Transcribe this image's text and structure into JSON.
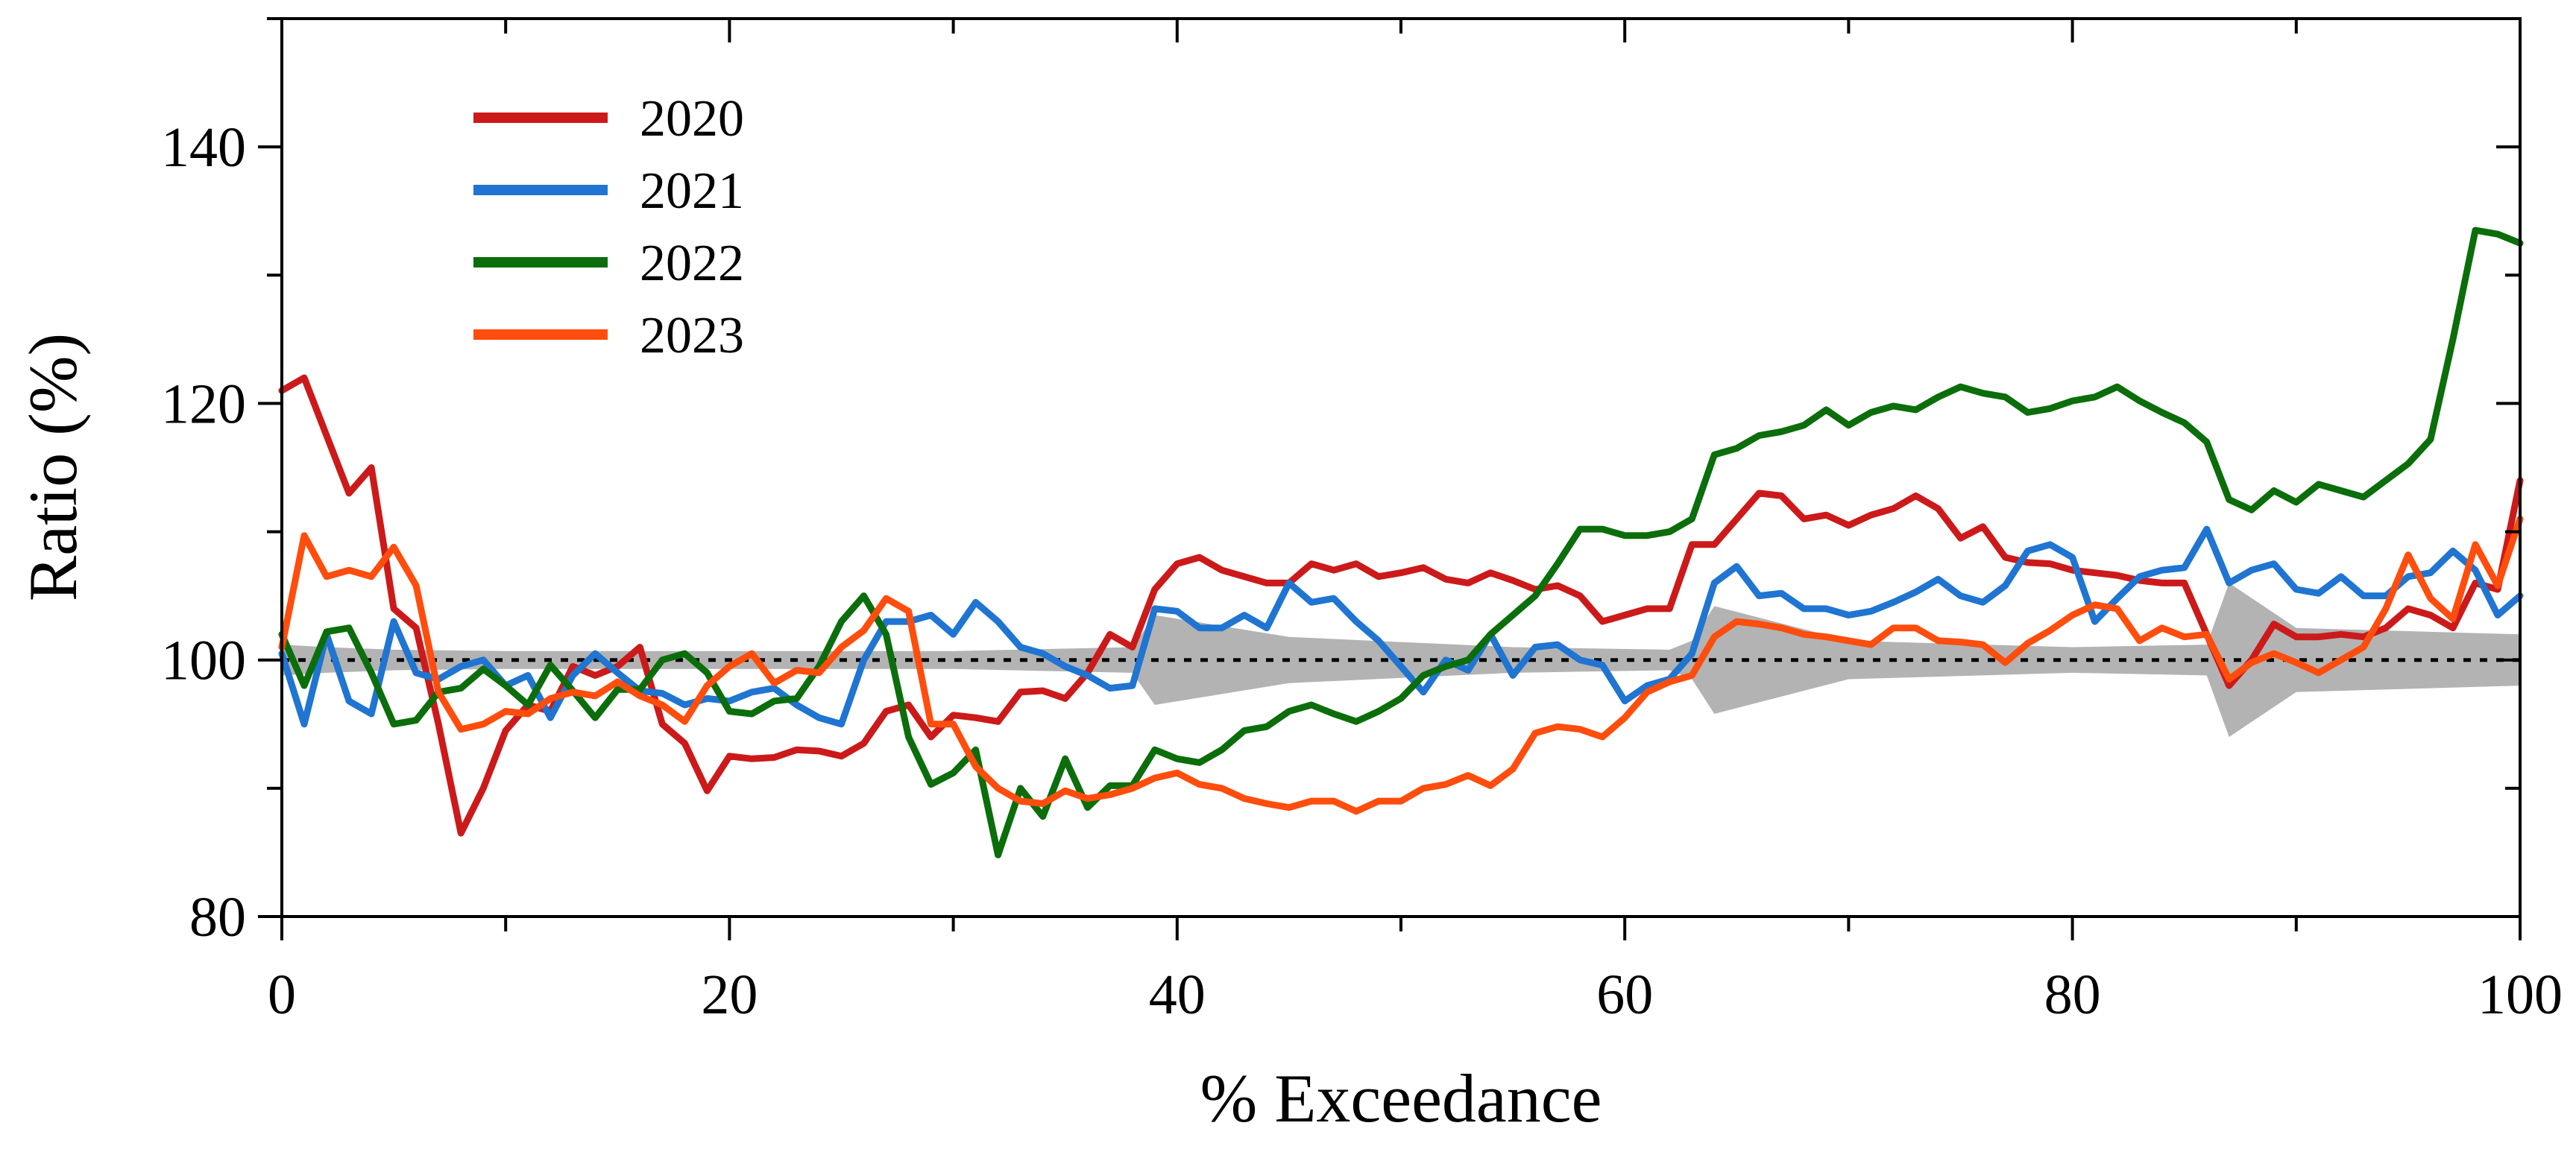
{
  "chart_data": {
    "type": "line",
    "title": "",
    "xlabel": "% Exceedance",
    "ylabel": "Ratio (%)",
    "xlim": [
      0,
      100
    ],
    "ylim": [
      80,
      150
    ],
    "x_ticks": [
      0,
      20,
      40,
      60,
      80,
      100
    ],
    "y_ticks": [
      80,
      100,
      120,
      140
    ],
    "x_tick_labels": [
      "0",
      "20",
      "40",
      "60",
      "80",
      "100"
    ],
    "y_tick_labels": [
      "80",
      "100",
      "120",
      "140"
    ],
    "grid": false,
    "legend_position": "top-left",
    "reference_line": {
      "y": 100,
      "style": "dotted",
      "color": "#000000"
    },
    "uncertainty_band": {
      "color": "#b3b3b3",
      "x": [
        0,
        2,
        5,
        10,
        20,
        30,
        38,
        39,
        45,
        55,
        62,
        63,
        64,
        70,
        80,
        86,
        87,
        90,
        100
      ],
      "lower": [
        98.8,
        99.0,
        99.2,
        99.3,
        99.3,
        99.3,
        99.0,
        96.5,
        98.2,
        99.0,
        99.2,
        98.5,
        95.8,
        98.5,
        99.0,
        98.8,
        94.0,
        97.5,
        98.0
      ],
      "upper": [
        101.2,
        101.0,
        100.8,
        100.7,
        100.7,
        100.7,
        101.0,
        103.5,
        101.8,
        101.0,
        100.8,
        101.5,
        104.2,
        101.5,
        101.0,
        101.2,
        106.0,
        102.5,
        102.0
      ]
    },
    "series": [
      {
        "name": "2020",
        "color": "#cc1a1a",
        "x": [
          0,
          1,
          2,
          3,
          4,
          5,
          6,
          7,
          8,
          9,
          10,
          11,
          12,
          13,
          14,
          15,
          16,
          17,
          18,
          19,
          20,
          21,
          22,
          23,
          24,
          25,
          26,
          27,
          28,
          29,
          30,
          31,
          32,
          33,
          34,
          35,
          36,
          37,
          38,
          39,
          40,
          41,
          42,
          43,
          44,
          45,
          46,
          47,
          48,
          49,
          50,
          51,
          52,
          53,
          54,
          55,
          56,
          57,
          58,
          59,
          60,
          61,
          62,
          63,
          64,
          65,
          66,
          67,
          68,
          69,
          70,
          71,
          72,
          73,
          74,
          75,
          76,
          77,
          78,
          79,
          80,
          81,
          82,
          83,
          84,
          85,
          86,
          87,
          88,
          89,
          90,
          91,
          92,
          93,
          94,
          95,
          96,
          97,
          98,
          99,
          100
        ],
        "values": [
          121,
          122,
          117.5,
          113,
          115,
          104,
          102.5,
          95,
          86.5,
          90,
          94.5,
          96.5,
          96,
          99.5,
          98.8,
          99.5,
          101,
          95,
          93.5,
          89.8,
          92.5,
          92.3,
          92.4,
          93,
          92.9,
          92.5,
          93.5,
          96,
          96.5,
          94,
          95.7,
          95.5,
          95.2,
          97.5,
          97.6,
          97,
          99,
          102,
          101,
          105.5,
          107.5,
          108,
          107,
          106.5,
          106,
          106,
          107.5,
          107,
          107.5,
          106.5,
          106.8,
          107.2,
          106.3,
          106,
          106.8,
          106.2,
          105.5,
          105.8,
          105,
          103,
          103.5,
          104,
          104,
          109,
          109,
          111,
          113,
          112.8,
          111,
          111.3,
          110.5,
          111.3,
          111.8,
          112.8,
          111.8,
          109.5,
          110.4,
          108,
          107.6,
          107.5,
          107,
          106.8,
          106.6,
          106.2,
          106,
          106,
          102,
          98,
          100,
          102.8,
          101.8,
          101.8,
          102,
          101.8,
          102.5,
          104,
          103.5,
          102.5,
          106,
          105.5,
          114
        ]
      },
      {
        "name": "2021",
        "color": "#1f75d1",
        "x": [
          0,
          1,
          2,
          3,
          4,
          5,
          6,
          7,
          8,
          9,
          10,
          11,
          12,
          13,
          14,
          15,
          16,
          17,
          18,
          19,
          20,
          21,
          22,
          23,
          24,
          25,
          26,
          27,
          28,
          29,
          30,
          31,
          32,
          33,
          34,
          35,
          36,
          37,
          38,
          39,
          40,
          41,
          42,
          43,
          44,
          45,
          46,
          47,
          48,
          49,
          50,
          51,
          52,
          53,
          54,
          55,
          56,
          57,
          58,
          59,
          60,
          61,
          62,
          63,
          64,
          65,
          66,
          67,
          68,
          69,
          70,
          71,
          72,
          73,
          74,
          75,
          76,
          77,
          78,
          79,
          80,
          81,
          82,
          83,
          84,
          85,
          86,
          87,
          88,
          89,
          90,
          91,
          92,
          93,
          94,
          95,
          96,
          97,
          98,
          99,
          100
        ],
        "values": [
          100.5,
          95,
          102,
          96.8,
          95.8,
          103,
          99,
          98.5,
          99.5,
          100,
          98,
          98.8,
          95.5,
          98.8,
          100.5,
          99,
          97.6,
          97.4,
          96.5,
          97,
          96.8,
          97.5,
          97.8,
          96.5,
          95.5,
          95,
          100,
          103,
          103,
          103.5,
          102,
          104.5,
          103,
          101,
          100.5,
          99.5,
          98.8,
          97.8,
          98,
          104,
          103.8,
          102.5,
          102.5,
          103.5,
          102.5,
          106,
          104.5,
          104.8,
          103,
          101.5,
          99.5,
          97.5,
          100,
          99.2,
          102,
          98.8,
          101,
          101.2,
          100,
          99.6,
          96.8,
          98,
          98.5,
          100.5,
          106,
          107.3,
          105,
          105.2,
          104,
          104,
          103.5,
          103.8,
          104.5,
          105.3,
          106.3,
          105,
          104.5,
          105.8,
          108.5,
          109,
          108,
          103,
          104.8,
          106.5,
          107,
          107.2,
          110.2,
          106,
          107,
          107.5,
          105.5,
          105.2,
          106.5,
          105,
          105,
          106.5,
          106.8,
          108.5,
          107,
          103.5,
          105
        ]
      },
      {
        "name": "2022",
        "color": "#0b6e0b",
        "x": [
          0,
          1,
          2,
          3,
          4,
          5,
          6,
          7,
          8,
          9,
          10,
          11,
          12,
          13,
          14,
          15,
          16,
          17,
          18,
          19,
          20,
          21,
          22,
          23,
          24,
          25,
          26,
          27,
          28,
          29,
          30,
          31,
          32,
          33,
          34,
          35,
          36,
          37,
          38,
          39,
          40,
          41,
          42,
          43,
          44,
          45,
          46,
          47,
          48,
          49,
          50,
          51,
          52,
          53,
          54,
          55,
          56,
          57,
          58,
          59,
          60,
          61,
          62,
          63,
          64,
          65,
          66,
          67,
          68,
          69,
          70,
          71,
          72,
          73,
          74,
          75,
          76,
          77,
          78,
          79,
          80,
          81,
          82,
          83,
          84,
          85,
          86,
          87,
          88,
          89,
          90,
          91,
          92,
          93,
          94,
          95,
          96,
          97,
          98,
          99,
          100
        ],
        "values": [
          102,
          98,
          102.2,
          102.5,
          99,
          95,
          95.3,
          97.5,
          97.8,
          99.3,
          98,
          96.5,
          99.6,
          97.6,
          95.5,
          97.7,
          97.7,
          100,
          100.5,
          99,
          96,
          95.8,
          96.8,
          97,
          99.5,
          103,
          105,
          102,
          94,
          90.3,
          91.2,
          93,
          84.8,
          90,
          87.8,
          92.3,
          88.5,
          90.2,
          90.2,
          93,
          92.3,
          92,
          93,
          94.5,
          94.8,
          96,
          96.5,
          95.8,
          95.2,
          96,
          97,
          98.8,
          99.5,
          100,
          102,
          103.5,
          105,
          107.5,
          110.2,
          110.2,
          109.7,
          109.7,
          110,
          111,
          116,
          116.5,
          117.5,
          117.8,
          118.3,
          119.5,
          118.3,
          119.3,
          119.8,
          119.5,
          120.5,
          121.3,
          120.8,
          120.5,
          119.3,
          119.6,
          120.2,
          120.5,
          121.3,
          120.2,
          119.3,
          118.5,
          117,
          112.5,
          111.7,
          113.2,
          112.3,
          113.7,
          113.2,
          112.7,
          114,
          115.3,
          117.2,
          125,
          133.5,
          133.2,
          132.5
        ]
      },
      {
        "name": "2023",
        "color": "#ff4d0d",
        "x": [
          0,
          1,
          2,
          3,
          4,
          5,
          6,
          7,
          8,
          9,
          10,
          11,
          12,
          13,
          14,
          15,
          16,
          17,
          18,
          19,
          20,
          21,
          22,
          23,
          24,
          25,
          26,
          27,
          28,
          29,
          30,
          31,
          32,
          33,
          34,
          35,
          36,
          37,
          38,
          39,
          40,
          41,
          42,
          43,
          44,
          45,
          46,
          47,
          48,
          49,
          50,
          51,
          52,
          53,
          54,
          55,
          56,
          57,
          58,
          59,
          60,
          61,
          62,
          63,
          64,
          65,
          66,
          67,
          68,
          69,
          70,
          71,
          72,
          73,
          74,
          75,
          76,
          77,
          78,
          79,
          80,
          81,
          82,
          83,
          84,
          85,
          86,
          87,
          88,
          89,
          90,
          91,
          92,
          93,
          94,
          95,
          96,
          97,
          98,
          99,
          100
        ],
        "values": [
          101,
          109.7,
          106.5,
          107,
          106.5,
          108.8,
          105.8,
          97.5,
          94.6,
          95,
          96,
          95.8,
          97,
          97.5,
          97.2,
          98.3,
          97.2,
          96.5,
          95.2,
          98,
          99.5,
          100.5,
          98.2,
          99.2,
          99,
          101,
          102.3,
          104.8,
          103.8,
          95,
          95,
          91.7,
          90,
          89,
          88.8,
          89.8,
          89.2,
          89.5,
          90,
          90.8,
          91.2,
          90.3,
          90,
          89.2,
          88.8,
          88.5,
          89,
          89,
          88.2,
          89,
          89,
          90,
          90.3,
          91,
          90.2,
          91.5,
          94.3,
          94.8,
          94.6,
          94,
          95.5,
          97.5,
          98.3,
          98.8,
          101.8,
          103,
          102.8,
          102.5,
          102,
          101.8,
          101.5,
          101.2,
          102.5,
          102.5,
          101.5,
          101.4,
          101.2,
          99.8,
          101.3,
          102.3,
          103.5,
          104.3,
          104,
          101.5,
          102.5,
          101.8,
          102,
          98.5,
          99.8,
          100.5,
          99.8,
          99,
          100,
          101,
          104,
          108.2,
          104.8,
          103.2,
          109,
          105.8,
          111
        ]
      }
    ]
  }
}
